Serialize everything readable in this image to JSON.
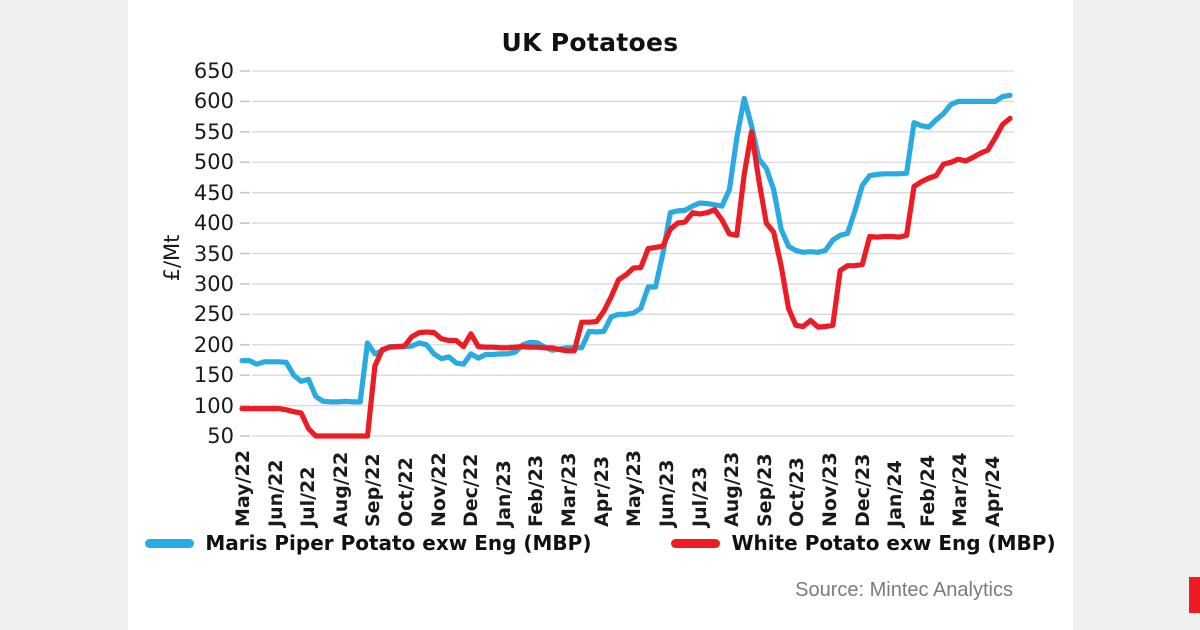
{
  "page": {
    "background_color": "#f0f0f0",
    "panel_color": "#ffffff"
  },
  "chart_data": {
    "type": "line",
    "title": "UK Potatoes",
    "xlabel": "",
    "ylabel": "£/Mt",
    "ylim": [
      50,
      650
    ],
    "yticks": [
      650,
      600,
      550,
      500,
      450,
      400,
      350,
      300,
      250,
      200,
      150,
      100,
      50
    ],
    "grid": true,
    "legend_position": "bottom",
    "x_frequency": "weekly",
    "x_tick_labels": [
      "May/22",
      "Jun/22",
      "Jul/22",
      "Aug/22",
      "Sep/22",
      "Oct/22",
      "Nov/22",
      "Dec/22",
      "Jan/23",
      "Feb/23",
      "Mar/23",
      "Apr/23",
      "May/23",
      "Jun/23",
      "Jul/23",
      "Aug/23",
      "Sep/23",
      "Oct/23",
      "Nov/23",
      "Dec/23",
      "Jan/24",
      "Feb/24",
      "Mar/24",
      "Apr/24"
    ],
    "grid_color": "#d9d9d9",
    "tick_color": "#c6c6c6",
    "series": [
      {
        "name": "Maris Piper Potato exw Eng (MBP)",
        "color": "#29abe2",
        "values": [
          174,
          174,
          168,
          172,
          172,
          172,
          171,
          150,
          140,
          143,
          115,
          107,
          106,
          106,
          107,
          106,
          106,
          203,
          185,
          190,
          197,
          197,
          197,
          198,
          203,
          200,
          185,
          177,
          180,
          170,
          168,
          185,
          178,
          184,
          184,
          185,
          185,
          188,
          200,
          204,
          203,
          196,
          191,
          193,
          195,
          195,
          195,
          222,
          221,
          222,
          246,
          250,
          250,
          252,
          260,
          295,
          295,
          350,
          417,
          420,
          421,
          428,
          433,
          432,
          430,
          428,
          455,
          540,
          605,
          560,
          505,
          490,
          455,
          390,
          362,
          355,
          352,
          353,
          352,
          355,
          372,
          380,
          383,
          420,
          462,
          478,
          480,
          481,
          481,
          481,
          482,
          565,
          560,
          558,
          570,
          580,
          595,
          600,
          600,
          600,
          600,
          600,
          600,
          608,
          610
        ]
      },
      {
        "name": "White Potato exw Eng (MBP)",
        "color": "#ed1c24",
        "values": [
          95,
          95,
          95,
          95,
          95,
          95,
          93,
          90,
          88,
          62,
          50,
          50,
          50,
          50,
          50,
          50,
          50,
          50,
          165,
          192,
          196,
          197,
          198,
          213,
          220,
          221,
          220,
          210,
          207,
          207,
          197,
          218,
          197,
          196,
          196,
          195,
          195,
          196,
          197,
          196,
          196,
          195,
          195,
          192,
          190,
          190,
          237,
          237,
          238,
          255,
          279,
          307,
          315,
          326,
          327,
          358,
          360,
          362,
          390,
          400,
          402,
          417,
          415,
          417,
          422,
          405,
          382,
          380,
          480,
          550,
          470,
          400,
          385,
          330,
          260,
          232,
          230,
          240,
          229,
          230,
          232,
          322,
          330,
          330,
          332,
          378,
          377,
          378,
          378,
          377,
          380,
          460,
          468,
          474,
          478,
          497,
          500,
          505,
          502,
          508,
          515,
          520,
          540,
          562,
          572
        ]
      }
    ]
  },
  "source": {
    "label": "Source: Mintec Analytics"
  }
}
